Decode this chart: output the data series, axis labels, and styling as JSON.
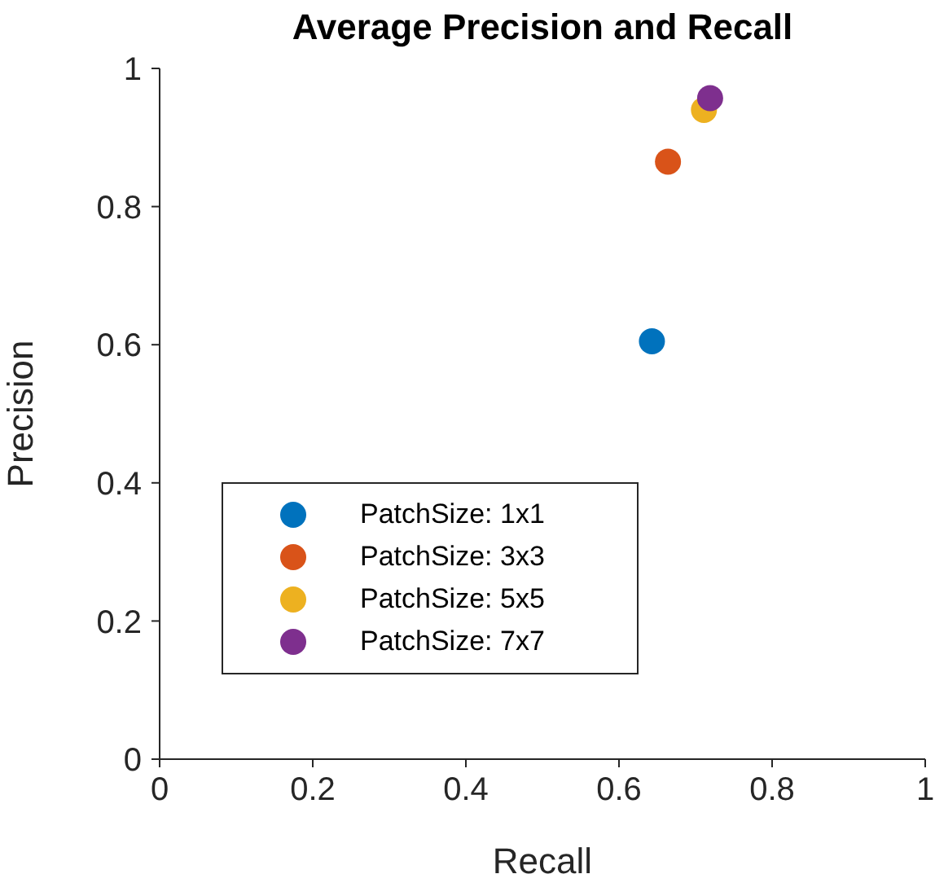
{
  "chart_data": {
    "type": "scatter",
    "title": "Average Precision and Recall",
    "xlabel": "Recall",
    "ylabel": "Precision",
    "xlim": [
      0,
      1
    ],
    "ylim": [
      0,
      1
    ],
    "xticks": [
      0,
      0.2,
      0.4,
      0.6,
      0.8,
      1
    ],
    "yticks": [
      0,
      0.2,
      0.4,
      0.6,
      0.8,
      1
    ],
    "grid": false,
    "legend": "bottom left",
    "marker": "circle",
    "series": [
      {
        "name": "PatchSize: 1x1",
        "color": "#0072bd",
        "x": [
          0.643
        ],
        "values": [
          0.605
        ]
      },
      {
        "name": "PatchSize: 3x3",
        "color": "#d95319",
        "x": [
          0.664
        ],
        "values": [
          0.865
        ]
      },
      {
        "name": "PatchSize: 5x5",
        "color": "#edb120",
        "x": [
          0.711
        ],
        "values": [
          0.94
        ]
      },
      {
        "name": "PatchSize: 7x7",
        "color": "#7e2f8e",
        "x": [
          0.719
        ],
        "values": [
          0.957
        ]
      }
    ]
  }
}
